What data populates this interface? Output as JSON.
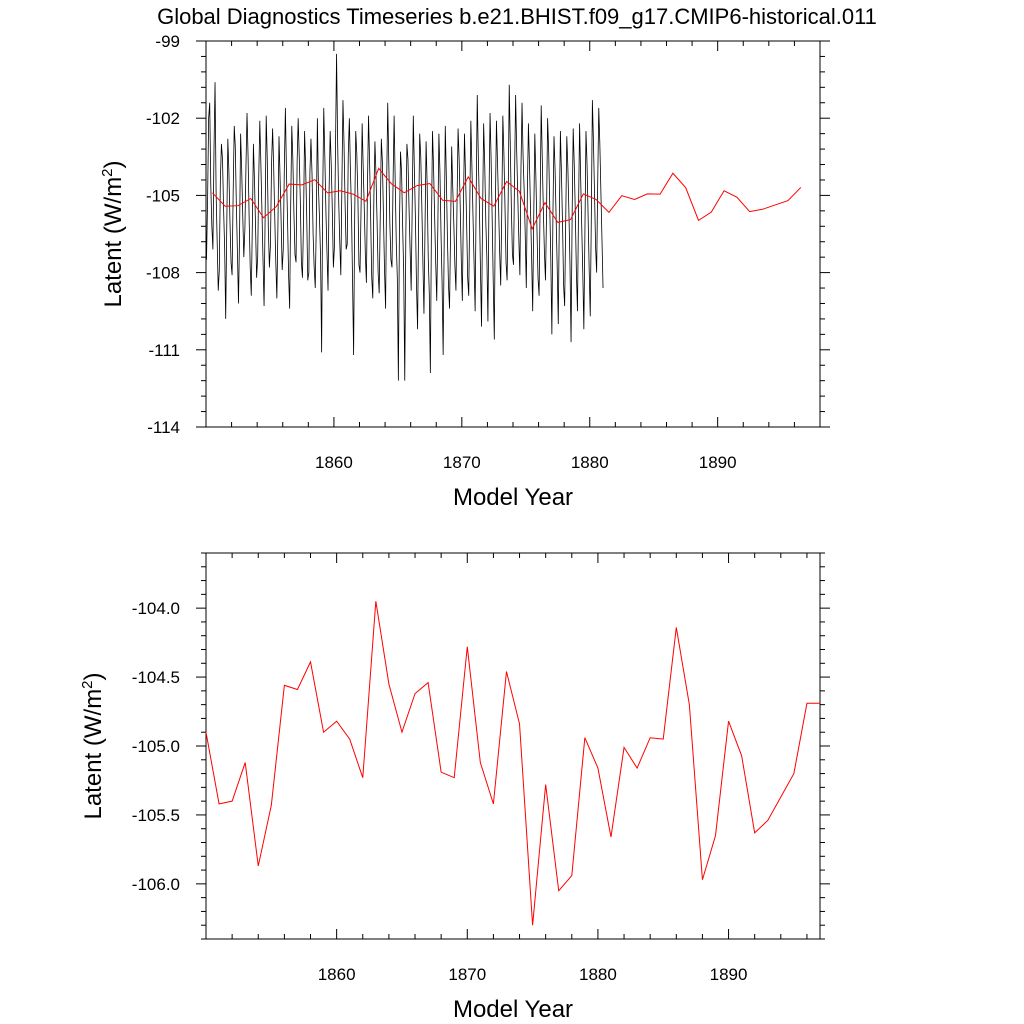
{
  "title": "Global Diagnostics Timeseries b.e21.BHIST.f09_g17.CMIP6-historical.011",
  "colors": {
    "annual": "#ff0000",
    "monthly": "#000000",
    "axes": "#000000"
  },
  "chart_data": [
    {
      "type": "line",
      "xlabel": "Model Year",
      "ylabel_main": "Latent (W/m",
      "ylabel_sup": "2",
      "ylabel_close": ")",
      "xlim": [
        1850,
        1898
      ],
      "ylim": [
        -114,
        -99
      ],
      "x_ticks": [
        1860,
        1870,
        1880,
        1890
      ],
      "x_ticklabels": [
        "1860",
        "1870",
        "1880",
        "1890"
      ],
      "y_ticks": [
        -114,
        -111,
        -108,
        -105,
        -102,
        -99
      ],
      "y_ticklabels": [
        "-114",
        "-111",
        "-108",
        "-105",
        "-102",
        "-99"
      ],
      "grid": false,
      "monthly_series": {
        "x_start": 1850.04,
        "x_step": 0.08333,
        "values": [
          -107.5,
          -105.2,
          -102.0,
          -101.4,
          -104.6,
          -106.2,
          -107.1,
          -103.3,
          -100.6,
          -104.9,
          -106.8,
          -108.7,
          -107.9,
          -104.4,
          -103.0,
          -103.6,
          -105.5,
          -107.0,
          -109.8,
          -106.2,
          -102.8,
          -104.1,
          -106.0,
          -107.6,
          -108.1,
          -104.9,
          -102.3,
          -103.1,
          -105.4,
          -107.2,
          -109.2,
          -106.5,
          -102.6,
          -104.0,
          -105.8,
          -107.4,
          -106.3,
          -103.9,
          -101.8,
          -103.5,
          -105.9,
          -107.8,
          -108.9,
          -106.1,
          -103.0,
          -104.4,
          -106.2,
          -108.2,
          -107.4,
          -104.3,
          -102.1,
          -103.8,
          -105.6,
          -107.5,
          -109.3,
          -105.8,
          -101.9,
          -103.6,
          -106.3,
          -107.8,
          -106.9,
          -103.8,
          -102.4,
          -103.9,
          -105.8,
          -107.6,
          -109.0,
          -106.2,
          -102.7,
          -104.3,
          -106.0,
          -107.9,
          -107.1,
          -104.0,
          -101.6,
          -104.1,
          -105.9,
          -108.1,
          -109.4,
          -105.3,
          -102.3,
          -103.6,
          -105.7,
          -107.3,
          -107.6,
          -103.7,
          -102.0,
          -103.5,
          -105.2,
          -107.6,
          -108.2,
          -106.0,
          -102.5,
          -103.9,
          -105.8,
          -108.3,
          -108.0,
          -104.1,
          -102.8,
          -104.2,
          -106.5,
          -107.8,
          -108.6,
          -106.1,
          -102.0,
          -104.7,
          -105.9,
          -107.4,
          -111.1,
          -105.0,
          -101.6,
          -103.5,
          -105.6,
          -107.2,
          -108.7,
          -104.8,
          -102.5,
          -103.8,
          -105.5,
          -107.8,
          -107.0,
          -103.2,
          -99.5,
          -102.9,
          -105.2,
          -106.8,
          -108.1,
          -104.6,
          -101.3,
          -103.0,
          -105.3,
          -107.1,
          -106.9,
          -103.4,
          -102.0,
          -104.0,
          -105.6,
          -108.3,
          -111.2,
          -105.9,
          -102.5,
          -103.4,
          -105.0,
          -107.7,
          -108.0,
          -105.5,
          -102.2,
          -103.9,
          -105.5,
          -107.3,
          -108.4,
          -104.6,
          -101.9,
          -103.7,
          -105.9,
          -108.2,
          -109.0,
          -105.1,
          -102.9,
          -104.2,
          -106.0,
          -108.0,
          -108.8,
          -105.8,
          -102.8,
          -103.7,
          -105.8,
          -107.9,
          -109.4,
          -104.6,
          -101.4,
          -103.7,
          -106.1,
          -107.5,
          -107.8,
          -104.5,
          -101.9,
          -104.4,
          -106.8,
          -108.2,
          -112.2,
          -106.2,
          -103.3,
          -104.1,
          -106.2,
          -108.0,
          -112.2,
          -106.5,
          -103.0,
          -103.6,
          -105.5,
          -107.1,
          -108.7,
          -105.3,
          -101.9,
          -104.0,
          -105.9,
          -108.5,
          -110.2,
          -106.0,
          -102.6,
          -103.5,
          -105.4,
          -107.6,
          -109.6,
          -106.2,
          -102.9,
          -104.6,
          -107.4,
          -108.8,
          -111.9,
          -106.3,
          -102.5,
          -103.9,
          -105.8,
          -107.6,
          -109.1,
          -106.3,
          -102.6,
          -104.1,
          -106.5,
          -108.4,
          -111.2,
          -106.7,
          -102.3,
          -104.3,
          -106.6,
          -108.5,
          -109.4,
          -106.3,
          -103.1,
          -104.7,
          -106.1,
          -107.7,
          -108.7,
          -105.4,
          -102.4,
          -103.6,
          -105.4,
          -107.5,
          -109.1,
          -105.5,
          -102.6,
          -104.2,
          -106.0,
          -108.2,
          -108.9,
          -105.3,
          -102.1,
          -103.9,
          -105.8,
          -107.6,
          -109.5,
          -105.0,
          -101.1,
          -103.5,
          -105.4,
          -107.9,
          -110.1,
          -105.7,
          -102.2,
          -103.8,
          -106.0,
          -107.4,
          -109.9,
          -105.2,
          -101.8,
          -103.6,
          -105.9,
          -108.4,
          -110.6,
          -105.4,
          -102.1,
          -103.7,
          -105.4,
          -107.2,
          -108.5,
          -105.6,
          -101.9,
          -103.4,
          -105.4,
          -107.6,
          -108.3,
          -105.2,
          -100.7,
          -103.1,
          -105.5,
          -107.3,
          -107.7,
          -104.2,
          -101.1,
          -103.3,
          -105.0,
          -106.7,
          -108.1,
          -104.0,
          -101.4,
          -103.5,
          -104.8,
          -106.5,
          -108.6,
          -104.9,
          -102.2,
          -103.8,
          -105.6,
          -107.4,
          -109.5,
          -105.8,
          -102.6,
          -104.3,
          -106.3,
          -108.2,
          -108.9,
          -105.2,
          -101.5,
          -103.6,
          -105.6,
          -107.2,
          -108.3,
          -105.7,
          -102.0,
          -103.3,
          -105.4,
          -107.5,
          -110.4,
          -105.7,
          -102.7,
          -104.0,
          -105.9,
          -107.8,
          -110.0,
          -105.8,
          -102.5,
          -104.2,
          -106.1,
          -108.5,
          -109.3,
          -105.9,
          -102.7,
          -103.9,
          -105.7,
          -107.7,
          -110.7,
          -105.8,
          -102.4,
          -103.8,
          -105.7,
          -108.0,
          -109.5,
          -105.6,
          -102.2,
          -104.3,
          -106.2,
          -108.0,
          -110.2,
          -106.4,
          -102.5,
          -103.8,
          -105.8,
          -107.9,
          -109.7,
          -105.9,
          -101.3,
          -102.9,
          -104.9,
          -107.0,
          -108.0,
          -104.5,
          -101.6,
          -103.0,
          -104.9,
          -106.7,
          -108.6
        ]
      },
      "annual_series": {
        "x": [
          1850.5,
          1851.5,
          1852.5,
          1853.5,
          1854.5,
          1855.5,
          1856.5,
          1857.5,
          1858.5,
          1859.5,
          1860.5,
          1861.5,
          1862.5,
          1863.5,
          1864.5,
          1865.5,
          1866.5,
          1867.5,
          1868.5,
          1869.5,
          1870.5,
          1871.5,
          1872.5,
          1873.5,
          1874.5,
          1875.5,
          1876.5,
          1877.5,
          1878.5,
          1879.5,
          1880.5,
          1881.5,
          1882.5,
          1883.5,
          1884.5,
          1885.5,
          1886.5,
          1887.5,
          1888.5,
          1889.5,
          1890.5,
          1891.5,
          1892.5,
          1893.5,
          1894.5,
          1895.5,
          1896.5
        ],
        "values": [
          -104.9,
          -105.42,
          -105.4,
          -105.12,
          -105.87,
          -105.43,
          -104.56,
          -104.59,
          -104.39,
          -104.9,
          -104.82,
          -104.95,
          -105.23,
          -103.95,
          -104.55,
          -104.9,
          -104.62,
          -104.54,
          -105.19,
          -105.23,
          -104.28,
          -105.12,
          -105.42,
          -104.46,
          -104.84,
          -106.3,
          -105.28,
          -106.05,
          -105.94,
          -104.94,
          -105.16,
          -105.66,
          -105.01,
          -105.16,
          -104.94,
          -104.95,
          -104.14,
          -104.7,
          -105.97,
          -105.65,
          -104.82,
          -105.07,
          -105.63,
          -105.54,
          -105.37,
          -105.2,
          -104.69
        ]
      }
    },
    {
      "type": "line",
      "xlabel": "Model Year",
      "ylabel_main": "Latent (W/m",
      "ylabel_sup": "2",
      "ylabel_close": ")",
      "xlim": [
        1850,
        1897
      ],
      "ylim": [
        -106.4,
        -103.6
      ],
      "x_ticks": [
        1860,
        1870,
        1880,
        1890
      ],
      "x_ticklabels": [
        "1860",
        "1870",
        "1880",
        "1890"
      ],
      "y_ticks": [
        -106.0,
        -105.5,
        -105.0,
        -104.5,
        -104.0
      ],
      "y_ticklabels": [
        "-106.0",
        "-105.5",
        "-105.0",
        "-104.5",
        "-104.0"
      ],
      "grid": false,
      "series": [
        {
          "x": [
            1850.0,
            1851.0,
            1852.0,
            1853.0,
            1854.0,
            1855.0,
            1856.0,
            1857.0,
            1858.0,
            1859.0,
            1860.0,
            1861.0,
            1862.0,
            1863.0,
            1864.0,
            1865.0,
            1866.0,
            1867.0,
            1868.0,
            1869.0,
            1870.0,
            1871.0,
            1872.0,
            1873.0,
            1874.0,
            1875.0,
            1876.0,
            1877.0,
            1878.0,
            1879.0,
            1880.0,
            1881.0,
            1882.0,
            1883.0,
            1884.0,
            1885.0,
            1886.0,
            1887.0,
            1888.0,
            1889.0,
            1890.0,
            1891.0,
            1892.0,
            1893.0,
            1894.0,
            1895.0,
            1896.0,
            1897.0
          ],
          "values": [
            -104.9,
            -105.42,
            -105.4,
            -105.12,
            -105.87,
            -105.43,
            -104.56,
            -104.59,
            -104.39,
            -104.9,
            -104.82,
            -104.95,
            -105.23,
            -103.95,
            -104.55,
            -104.9,
            -104.62,
            -104.54,
            -105.19,
            -105.23,
            -104.28,
            -105.12,
            -105.42,
            -104.46,
            -104.84,
            -106.3,
            -105.28,
            -106.05,
            -105.94,
            -104.94,
            -105.16,
            -105.66,
            -105.01,
            -105.16,
            -104.94,
            -104.95,
            -104.14,
            -104.7,
            -105.97,
            -105.65,
            -104.82,
            -105.07,
            -105.63,
            -105.54,
            -105.37,
            -105.2,
            -104.69,
            -104.69
          ]
        }
      ]
    }
  ]
}
